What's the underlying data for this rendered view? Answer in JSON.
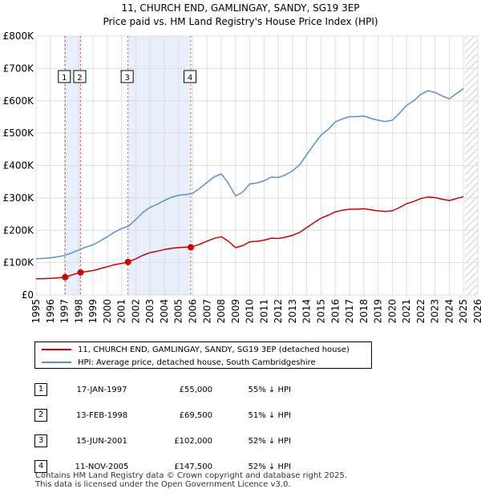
{
  "chart_data": {
    "type": "line",
    "title": "11, CHURCH END, GAMLINGAY, SANDY, SG19 3EP",
    "subtitle": "Price paid vs. HM Land Registry's House Price Index (HPI)",
    "xlabel": "",
    "ylabel": "",
    "xlim": [
      1995,
      2026
    ],
    "ylim": [
      0,
      800000
    ],
    "x_ticks": [
      "1995",
      "1996",
      "1997",
      "1998",
      "1999",
      "2000",
      "2001",
      "2002",
      "2003",
      "2004",
      "2005",
      "2006",
      "2007",
      "2008",
      "2009",
      "2010",
      "2011",
      "2012",
      "2013",
      "2014",
      "2015",
      "2016",
      "2017",
      "2018",
      "2019",
      "2020",
      "2021",
      "2022",
      "2023",
      "2024",
      "2025",
      "2026"
    ],
    "y_ticks": [
      {
        "value": 0,
        "label": "£0"
      },
      {
        "value": 100000,
        "label": "£100K"
      },
      {
        "value": 200000,
        "label": "£200K"
      },
      {
        "value": 300000,
        "label": "£300K"
      },
      {
        "value": 400000,
        "label": "£400K"
      },
      {
        "value": 500000,
        "label": "£500K"
      },
      {
        "value": 600000,
        "label": "£600K"
      },
      {
        "value": 700000,
        "label": "£700K"
      },
      {
        "value": 800000,
        "label": "£800K"
      }
    ],
    "shaded_periods": [
      [
        1997.04,
        1998.12
      ],
      [
        2001.45,
        2005.86
      ]
    ],
    "forecast_start": 2025.1,
    "series": [
      {
        "name": "11, CHURCH END, GAMLINGAY, SANDY, SG19 3EP (detached house)",
        "color": "#cc0000",
        "x": [
          1995.0,
          1995.5,
          1996.0,
          1996.5,
          1997.04,
          1997.5,
          1998.12,
          1998.5,
          1999.0,
          1999.5,
          2000.0,
          2000.5,
          2001.0,
          2001.45,
          2002.0,
          2002.5,
          2003.0,
          2003.5,
          2004.0,
          2004.5,
          2005.0,
          2005.5,
          2005.86,
          2006.5,
          2007.0,
          2007.5,
          2008.0,
          2008.5,
          2009.0,
          2009.5,
          2010.0,
          2010.5,
          2011.0,
          2011.5,
          2012.0,
          2012.5,
          2013.0,
          2013.5,
          2014.0,
          2014.5,
          2015.0,
          2015.5,
          2016.0,
          2016.5,
          2017.0,
          2017.5,
          2018.0,
          2018.5,
          2019.0,
          2019.5,
          2020.0,
          2020.5,
          2021.0,
          2021.5,
          2022.0,
          2022.5,
          2023.0,
          2023.5,
          2024.0,
          2024.5,
          2025.0
        ],
        "y": [
          50000,
          50500,
          51500,
          53000,
          55000,
          62000,
          69500,
          72500,
          75500,
          81500,
          87500,
          93500,
          97500,
          102000,
          112000,
          122500,
          131000,
          135500,
          140500,
          144500,
          146500,
          148000,
          147500,
          157000,
          166500,
          175000,
          180000,
          166000,
          146500,
          152500,
          164500,
          166000,
          169500,
          175500,
          174500,
          178500,
          184500,
          193500,
          208500,
          223500,
          237500,
          246500,
          257000,
          262000,
          265000,
          265000,
          266500,
          263000,
          260000,
          258000,
          260000,
          270000,
          282000,
          289000,
          298000,
          303000,
          301000,
          296000,
          292000,
          298000,
          304000
        ]
      },
      {
        "name": "HPI: Average price, detached house, South Cambridgeshire",
        "color": "#5b8fd4",
        "x": [
          1995.0,
          1995.5,
          1996.0,
          1996.5,
          1997.0,
          1997.5,
          1998.0,
          1998.5,
          1999.0,
          1999.5,
          2000.0,
          2000.5,
          2001.0,
          2001.5,
          2002.0,
          2002.5,
          2003.0,
          2003.5,
          2004.0,
          2004.5,
          2005.0,
          2005.5,
          2006.0,
          2006.5,
          2007.0,
          2007.5,
          2008.0,
          2008.5,
          2009.0,
          2009.5,
          2010.0,
          2010.5,
          2011.0,
          2011.5,
          2012.0,
          2012.5,
          2013.0,
          2013.5,
          2014.0,
          2014.5,
          2015.0,
          2015.5,
          2016.0,
          2016.5,
          2017.0,
          2017.5,
          2018.0,
          2018.5,
          2019.0,
          2019.5,
          2020.0,
          2020.5,
          2021.0,
          2021.5,
          2022.0,
          2022.5,
          2023.0,
          2023.5,
          2024.0,
          2024.5,
          2025.0
        ],
        "y": [
          112000,
          113000,
          115000,
          118000,
          122000,
          130000,
          139000,
          148000,
          155000,
          167000,
          180000,
          194000,
          205000,
          213000,
          233000,
          255000,
          271000,
          280000,
          292000,
          302000,
          308000,
          310000,
          314000,
          330000,
          348000,
          365000,
          374000,
          345000,
          306000,
          318000,
          343000,
          346000,
          353000,
          364000,
          363000,
          371000,
          384000,
          402000,
          434000,
          465000,
          494000,
          512000,
          535000,
          544000,
          551000,
          551000,
          553000,
          546000,
          540000,
          536000,
          540000,
          561000,
          586000,
          600000,
          620000,
          631000,
          626000,
          615000,
          606000,
          622000,
          638000
        ]
      }
    ],
    "sales": [
      {
        "label": "1",
        "x": 1997.04,
        "price": 55000
      },
      {
        "label": "2",
        "x": 1998.12,
        "price": 69500
      },
      {
        "label": "3",
        "x": 2001.45,
        "price": 102000
      },
      {
        "label": "4",
        "x": 2005.86,
        "price": 147500
      }
    ]
  },
  "legend": {
    "property": "11, CHURCH END, GAMLINGAY, SANDY, SG19 3EP (detached house)",
    "hpi": "HPI: Average price, detached house, South Cambridgeshire"
  },
  "table": [
    {
      "num": "1",
      "date": "17-JAN-1997",
      "price": "£55,000",
      "hpi": "55% ↓ HPI"
    },
    {
      "num": "2",
      "date": "13-FEB-1998",
      "price": "£69,500",
      "hpi": "51% ↓ HPI"
    },
    {
      "num": "3",
      "date": "15-JUN-2001",
      "price": "£102,000",
      "hpi": "52% ↓ HPI"
    },
    {
      "num": "4",
      "date": "11-NOV-2005",
      "price": "£147,500",
      "hpi": "52% ↓ HPI"
    }
  ],
  "footer": {
    "line1": "Contains HM Land Registry data © Crown copyright and database right 2025.",
    "line2": "This data is licensed under the Open Government Licence v3.0."
  },
  "colors": {
    "property_line": "#cc0000",
    "hpi_line": "#5b8fd4",
    "shade": "#e8eefa",
    "grid": "#dddddd"
  }
}
